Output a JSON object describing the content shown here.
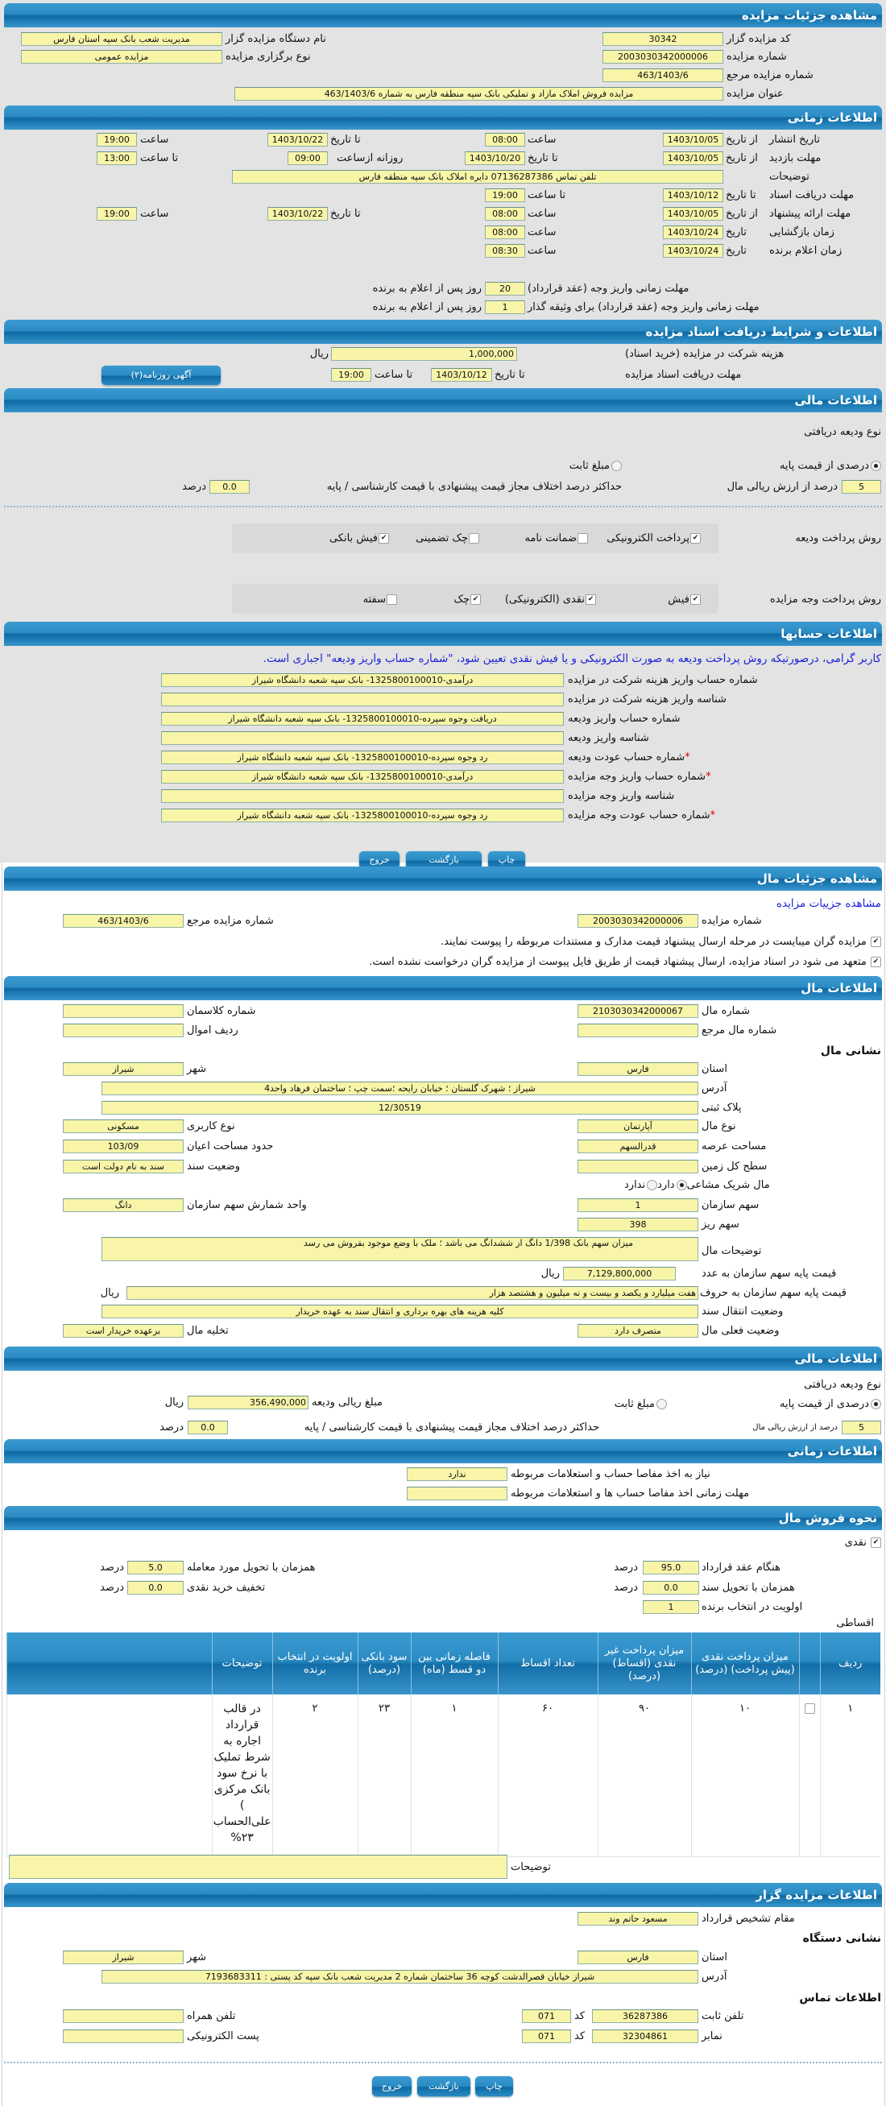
{
  "auction": {
    "title": "مشاهده جزئیات مزایده",
    "code_label": "کد مزایده گزار",
    "code": "30342",
    "org_label": "نام دستگاه مزایده گزار",
    "org": "مدیریت شعب بانک سپه استان فارس",
    "number_label": "شماره مزایده",
    "number": "2003030342000006",
    "type_label": "نوع برگزاری مزایده",
    "type": "مزایده عمومی",
    "ref_label": "شماره مزایده مرجع",
    "ref": "463/1403/6",
    "subject_label": "عنوان مزایده",
    "subject": "مزایده فروش  املاک مازاد و تملیکی  بانک سپه  منطقه فارس به شماره 463/1403/6"
  },
  "timing": {
    "title": "اطلاعات زمانی",
    "publish": {
      "label": "تاریخ انتشار",
      "from_label": "از تاریخ",
      "from_date": "1403/10/05",
      "from_time_label": "ساعت",
      "from_time": "08:00",
      "to_label": "تا تاریخ",
      "to_date": "1403/10/22",
      "to_time_label": "ساعت",
      "to_time": "19:00"
    },
    "visit": {
      "label": "مهلت بازدید",
      "from_label": "از تاریخ",
      "from_date": "1403/10/05",
      "to_label": "تا تاریخ",
      "to_date": "1403/10/20",
      "daily_label": "روزانه ازساعت",
      "daily_from": "09:00",
      "to_time_label": "تا ساعت",
      "to_time": "13:00"
    },
    "notes_label": "توضیحات",
    "notes": "تلفن تماس 07136287386 دایره املاک بانک سپه منطقه فارس",
    "docs": {
      "label": "مهلت دریافت اسناد",
      "to_label": "تا تاریخ",
      "date": "1403/10/12",
      "time_label": "تا ساعت",
      "time": "19:00"
    },
    "offer": {
      "label": "مهلت ارائه پیشنهاد",
      "from_label": "از تاریخ",
      "from_date": "1403/10/05",
      "from_time_label": "ساعت",
      "from_time": "08:00",
      "to_label": "تا تاریخ",
      "to_date": "1403/10/22",
      "to_time_label": "ساعت",
      "to_time": "19:00"
    },
    "opening": {
      "label": "زمان بازگشایی",
      "date_label": "تاریخ",
      "date": "1403/10/24",
      "time_label": "ساعت",
      "time": "08:00"
    },
    "winner": {
      "label": "زمان اعلام برنده",
      "date_label": "تاریخ",
      "date": "1403/10/24",
      "time_label": "ساعت",
      "time": "08:30"
    },
    "payment1": {
      "label": "مهلت زمانی واریز وجه (عقد قرارداد)",
      "days": "20",
      "suffix": "روز پس از اعلام به برنده"
    },
    "payment2": {
      "label": "مهلت زمانی واریز وجه (عقد قرارداد) برای وثیقه گذار",
      "days": "1",
      "suffix": "روز پس از اعلام به برنده"
    }
  },
  "docs_section": {
    "title": "اطلاعات و شرایط دریافت اسناد مزایده",
    "fee_label": "هزینه شرکت در مزایده (خرید اسناد)",
    "fee": "1,000,000",
    "currency": "ریال",
    "deadline_label": "مهلت دریافت اسناد مزایده",
    "to_date_label": "تا تاریخ",
    "to_date": "1403/10/12",
    "to_time_label": "تا ساعت",
    "to_time": "19:00",
    "ad_button": "آگهی روزنامه(۲)"
  },
  "finance": {
    "title": "اطلاعات مالی",
    "deposit_type_label": "نوع ودیعه دریافتی",
    "opt_percent": "درصدی از قیمت پایه",
    "opt_percent_selected": true,
    "opt_fixed": "مبلغ ثابت",
    "opt_fixed_selected": false,
    "percent": "5",
    "percent_label": "درصد از ارزش ریالی مال",
    "max_diff_label": "حداکثر درصد اختلاف مجاز قیمت پیشنهادی با قیمت کارشناسی / پایه",
    "max_diff": "0.0",
    "unit": "درصد",
    "deposit_methods": {
      "label": "روش پرداخت ودیعه",
      "options": [
        {
          "label": "پرداخت الکترونیکی",
          "checked": true
        },
        {
          "label": "ضمانت نامه",
          "checked": false
        },
        {
          "label": "چک تضمینی",
          "checked": false
        },
        {
          "label": "فیش بانکی",
          "checked": true
        }
      ]
    },
    "payment_methods": {
      "label": "روش پرداخت وجه مزایده",
      "options": [
        {
          "label": "فیش",
          "checked": true
        },
        {
          "label": "نقدی (الکترونیکی)",
          "checked": true
        },
        {
          "label": "چک",
          "checked": true
        },
        {
          "label": "سفته",
          "checked": false
        }
      ]
    }
  },
  "accounts": {
    "title": "اطلاعات حسابها",
    "note": "کاربر گرامی، درصورتیکه روش پرداخت ودیعه به صورت الکترونیکی و یا فیش نقدی تعیین شود، \"شماره حساب واریز ودیعه\" اجباری است.",
    "rows": [
      {
        "label": "شماره حساب واریز هزینه شرکت در مزایده",
        "value": "درآمدی-1325800100010- بانک سپه شعبه دانشگاه شیراز",
        "required": ""
      },
      {
        "label": "شناسه واریز هزینه شرکت در مزایده",
        "value": "",
        "required": ""
      },
      {
        "label": "شماره حساب واریز ودیعه",
        "value": "دریافت وجوه سپرده-1325800100010- بانک سپه شعبه دانشگاه شیراز",
        "required": ""
      },
      {
        "label": "شناسه واریز ودیعه",
        "value": "",
        "required": ""
      },
      {
        "label": "شماره حساب عودت ودیعه",
        "value": "رد وجوه سپرده-1325800100010- بانک سپه شعبه دانشگاه شیراز",
        "required": "*"
      },
      {
        "label": "شماره حساب واریز وجه مزایده",
        "value": "درآمدی-1325800100010- بانک سپه شعبه دانشگاه شیراز",
        "required": "*"
      },
      {
        "label": "شناسه واریز وجه مزایده",
        "value": "",
        "required": ""
      },
      {
        "label": "شماره حساب عودت وجه مزایده",
        "value": "رد وجوه سپرده-1325800100010- بانک سپه شعبه دانشگاه شیراز",
        "required": "*"
      }
    ]
  },
  "buttons": {
    "print": "چاپ",
    "back": "بازگشت",
    "exit": "خروج"
  },
  "property": {
    "title": "مشاهده جزئیات مال",
    "auction_link": "مشاهده جزییات مزایده",
    "number_label": "شماره مزایده",
    "number": "2003030342000006",
    "ref_label": "شماره مزایده مرجع",
    "ref": "463/1403/6",
    "check1": "مزایده گران میبایست در مرحله ارسال پیشنهاد قیمت مدارک و مستندات مربوطه را پیوست نمایند.",
    "check1_checked": true,
    "check2": "متعهد می شود در اسناد مزایده، ارسال پیشنهاد قیمت از طریق فایل پیوست از مزایده گران درخواست نشده است.",
    "check2_checked": true
  },
  "asset": {
    "title": "اطلاعات مال",
    "number_label": "شماره مال",
    "number": "2103030342000067",
    "class_label": "شماره کلاسمان",
    "class": "",
    "ref_label": "شماره مال مرجع",
    "ref": "",
    "row_label": "ردیف اموال",
    "row": "",
    "address_heading": "نشانی مال",
    "province_label": "استان",
    "province": "فارس",
    "city_label": "شهر",
    "city": "شیراز",
    "address_label": "آدرس",
    "address": "شیراز ؛ شهرک گلستان ؛ خیابان رایحه ؛سمت چپ ؛ ساختمان فرهاد واحد4",
    "plate_label": "پلاک ثبتی",
    "plate": "12/30519",
    "kind_label": "نوع مال",
    "kind": "آپارتمان",
    "usage_label": "نوع کاربری",
    "usage": "مسکونی",
    "land_area_label": "مساحت عرصه",
    "land_area": "قدرالسهم",
    "building_area_label": "حدود مساحت اعیان",
    "building_area": "103/09",
    "total_land_label": "سطح کل زمین",
    "total_land": "",
    "deed_label": "وضعیت سند",
    "deed": "سند به نام دولت است",
    "shared_label": "مال شریک مشاعی",
    "shared_yes": "دارد",
    "shared_yes_selected": true,
    "shared_no": "ندارد",
    "shared_no_selected": false,
    "share_label": "سهم سازمان",
    "share": "1",
    "share_unit_label": "واحد شمارش سهم سازمان",
    "share_unit": "دانگ",
    "micro_share_label": "سهم ریز",
    "micro_share": "398",
    "desc_label": "توضیحات مال",
    "desc": "میزان سهم بانک 1/398 دانگ از ششدانگ می باشد ؛ ملک با وضع موجود  بفروش می رسد",
    "price_num_label": "قیمت پایه سهم سازمان به عدد",
    "price_num": "7,129,800,000",
    "currency": "ریال",
    "price_words_label": "قیمت پایه سهم سازمان به حروف",
    "price_words": "هفت میلیارد و یکصد و بیست و نه میلیون و هشتصد هزار",
    "transfer_label": "وضعیت انتقال سند",
    "transfer": "کلیه هزینه های بهره برداری و انتقال سند به عهده خریدار",
    "current_label": "وضعیت فعلی مال",
    "current": "متصرف دارد",
    "evacuation_label": "تخلیه مال",
    "evacuation": "برعهده خریدار است"
  },
  "finance2": {
    "title": "اطلاعات مالی",
    "deposit_type_label": "نوع ودیعه دریافتی",
    "opt_percent": "درصدی از قیمت پایه",
    "opt_percent_selected": true,
    "opt_fixed": "مبلغ ثابت",
    "opt_fixed_selected": false,
    "amount_label": "مبلغ ریالی ودیعه",
    "amount": "356,490,000",
    "currency": "ریال",
    "percent": "5",
    "percent_label": "درصد از ارزش ریالی مال",
    "max_diff_label": "حداکثر درصد اختلاف مجاز قیمت پیشنهادی با قیمت کارشناسی / پایه",
    "max_diff": "0.0",
    "unit": "درصد"
  },
  "timing2": {
    "title": "اطلاعات زمانی",
    "clearance_label": "نیاز به اخذ مفاصا حساب و استعلامات مربوطه",
    "clearance": "ندارد",
    "clearance_deadline_label": "مهلت زمانی اخذ مفاصا حساب ها و استعلامات مربوطه",
    "clearance_deadline": ""
  },
  "sale": {
    "title": "نحوه فروش مال",
    "cash_label": "نقدی",
    "cash_checked": true,
    "contract_label": "هنگام عقد قرارداد",
    "contract": "95.0",
    "delivery_label": "همزمان با تحویل مورد معامله",
    "delivery": "5.0",
    "deed_delivery_label": "همزمان با تحویل سند",
    "deed_delivery": "0.0",
    "discount_label": "تخفیف خرید نقدی",
    "discount": "0.0",
    "priority_label": "اولویت در انتخاب برنده",
    "priority": "1",
    "unit": "درصد",
    "installment_label": "اقساطی",
    "table": {
      "headers": [
        "ردیف",
        "",
        "میزان پرداخت نقدی (پیش پرداخت) (درصد)",
        "میزان پرداخت غیر نقدی (اقساط) (درصد)",
        "تعداد اقساط",
        "فاصله زمانی بین دو قسط (ماه)",
        "سود بانکی (درصد)",
        "اولویت در انتخاب برنده",
        "توضیحات",
        ""
      ],
      "rows": [
        {
          "index": "۱",
          "selected": false,
          "cash": "۱۰",
          "noncash": "۹۰",
          "count": "۶۰",
          "interval": "۱",
          "interest": "۲۳",
          "priority": "۲",
          "desc": "در قالب قرارداد اجاره به شرط تملیک با نرخ سود بانک مرکزی ) علی‌الحساب ۲۳%"
        }
      ]
    },
    "notes_label": "توضیحات",
    "notes": ""
  },
  "auctioneer": {
    "title": "اطلاعات مزایده گزار",
    "authority_label": "مقام تشخیص قرارداد",
    "authority": "مسعود حاتم وند",
    "address_heading": "نشانی دستگاه",
    "province_label": "استان",
    "province": "فارس",
    "city_label": "شهر",
    "city": "شیراز",
    "address_label": "آدرس",
    "address": "شیراز خیابان قصرالدشت کوچه 36 ساختمان شماره 2 مدیریت شعب بانک سپه کد پستی : 7193683311",
    "contact_heading": "اطلاعات تماس",
    "phone_label": "تلفن ثابت",
    "phone": "36287386",
    "code_label": "کد",
    "phone_code": "071",
    "mobile_label": "تلفن همراه",
    "mobile": "",
    "fax_label": "نمابر",
    "fax": "32304861",
    "fax_code": "071",
    "email_label": "پست الکترونیکی",
    "email": ""
  },
  "colors": {
    "header_blue": "#2b8cc4",
    "field_yellow": "#f8f5a9",
    "note_blue": "#1c22d6",
    "required_red": "#dd0000"
  }
}
